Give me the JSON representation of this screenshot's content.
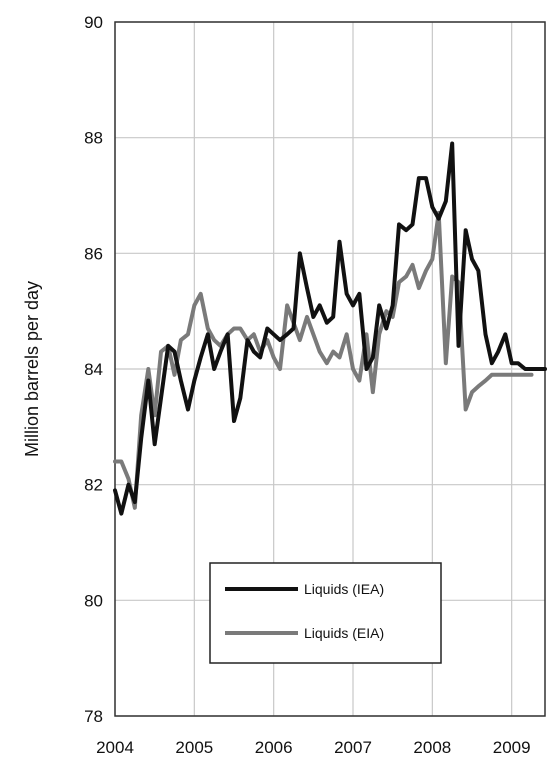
{
  "chart_data": {
    "type": "line",
    "title": "",
    "xlabel": "",
    "ylabel": "Million barrels per day",
    "xlim": [
      2004.0,
      2009.42
    ],
    "ylim": [
      78,
      90
    ],
    "x_ticks": [
      2004,
      2005,
      2006,
      2007,
      2008,
      2009
    ],
    "x_tick_labels": [
      "2004",
      "2005",
      "2006",
      "2007",
      "2008",
      "2009"
    ],
    "y_ticks": [
      78,
      80,
      82,
      84,
      86,
      88,
      90
    ],
    "y_tick_labels": [
      "78",
      "80",
      "82",
      "84",
      "86",
      "88",
      "90"
    ],
    "grid": true,
    "legend_position": "bottom-center",
    "series": [
      {
        "name": "Liquids (IEA)",
        "color": "#111111",
        "x": [
          2004.0,
          2004.08,
          2004.17,
          2004.25,
          2004.33,
          2004.42,
          2004.5,
          2004.58,
          2004.67,
          2004.75,
          2004.83,
          2004.92,
          2005.0,
          2005.08,
          2005.17,
          2005.25,
          2005.33,
          2005.42,
          2005.5,
          2005.58,
          2005.67,
          2005.75,
          2005.83,
          2005.92,
          2006.0,
          2006.08,
          2006.17,
          2006.25,
          2006.33,
          2006.42,
          2006.5,
          2006.58,
          2006.67,
          2006.75,
          2006.83,
          2006.92,
          2007.0,
          2007.08,
          2007.17,
          2007.25,
          2007.33,
          2007.42,
          2007.5,
          2007.58,
          2007.67,
          2007.75,
          2007.83,
          2007.92,
          2008.0,
          2008.08,
          2008.17,
          2008.25,
          2008.33,
          2008.42,
          2008.5,
          2008.58,
          2008.67,
          2008.75,
          2008.83,
          2008.92,
          2009.0,
          2009.08,
          2009.17,
          2009.25,
          2009.33,
          2009.42
        ],
        "values": [
          81.9,
          81.5,
          82.0,
          81.7,
          82.8,
          83.8,
          82.7,
          83.5,
          84.4,
          84.3,
          83.8,
          83.3,
          83.8,
          84.2,
          84.6,
          84.0,
          84.3,
          84.6,
          83.1,
          83.5,
          84.5,
          84.3,
          84.2,
          84.7,
          84.6,
          84.5,
          84.6,
          84.7,
          86.0,
          85.4,
          84.9,
          85.1,
          84.8,
          84.9,
          86.2,
          85.3,
          85.1,
          85.3,
          84.0,
          84.2,
          85.1,
          84.7,
          85.1,
          86.5,
          86.4,
          86.5,
          87.3,
          87.3,
          86.8,
          86.6,
          86.9,
          87.9,
          84.4,
          86.4,
          85.9,
          85.7,
          84.6,
          84.1,
          84.3,
          84.6,
          84.1,
          84.1,
          84.0,
          84.0,
          84.0,
          84.0
        ]
      },
      {
        "name": "Liquids (EIA)",
        "color": "#7a7a7a",
        "x": [
          2004.0,
          2004.08,
          2004.17,
          2004.25,
          2004.33,
          2004.42,
          2004.5,
          2004.58,
          2004.67,
          2004.75,
          2004.83,
          2004.92,
          2005.0,
          2005.08,
          2005.17,
          2005.25,
          2005.33,
          2005.42,
          2005.5,
          2005.58,
          2005.67,
          2005.75,
          2005.83,
          2005.92,
          2006.0,
          2006.08,
          2006.17,
          2006.25,
          2006.33,
          2006.42,
          2006.5,
          2006.58,
          2006.67,
          2006.75,
          2006.83,
          2006.92,
          2007.0,
          2007.08,
          2007.17,
          2007.25,
          2007.33,
          2007.42,
          2007.5,
          2007.58,
          2007.67,
          2007.75,
          2007.83,
          2007.92,
          2008.0,
          2008.08,
          2008.17,
          2008.25,
          2008.33,
          2008.42,
          2008.5,
          2008.58,
          2008.67,
          2008.75,
          2008.83,
          2008.92,
          2009.0,
          2009.08,
          2009.17,
          2009.25
        ],
        "values": [
          82.4,
          82.4,
          82.1,
          81.6,
          83.2,
          84.0,
          83.2,
          84.3,
          84.4,
          83.9,
          84.5,
          84.6,
          85.1,
          85.3,
          84.7,
          84.5,
          84.4,
          84.6,
          84.7,
          84.7,
          84.5,
          84.6,
          84.3,
          84.5,
          84.2,
          84.0,
          85.1,
          84.8,
          84.5,
          84.9,
          84.6,
          84.3,
          84.1,
          84.3,
          84.2,
          84.6,
          84.0,
          83.8,
          84.6,
          83.6,
          84.6,
          85.0,
          84.9,
          85.5,
          85.6,
          85.8,
          85.4,
          85.7,
          85.9,
          86.7,
          84.1,
          85.6,
          85.5,
          83.3,
          83.6,
          83.7,
          83.8,
          83.9,
          83.9,
          83.9,
          83.9,
          83.9,
          83.9,
          83.9
        ]
      }
    ]
  }
}
